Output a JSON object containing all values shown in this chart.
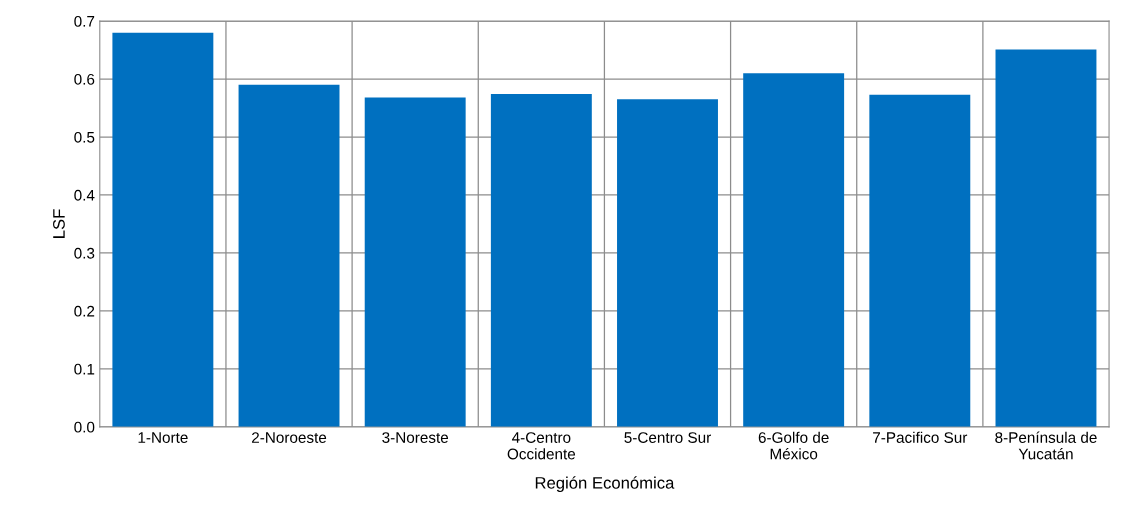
{
  "chart_data": {
    "type": "bar",
    "xlabel": "Región Económica",
    "ylabel": "LSF",
    "categories": [
      "1-Norte",
      "2-Noroeste",
      "3-Noreste",
      "4-Centro\nOccidente",
      "5-Centro Sur",
      "6-Golfo de\nMéxico",
      "7-Pacifico Sur",
      "8-Península de\nYucatán"
    ],
    "values": [
      0.68,
      0.59,
      0.568,
      0.574,
      0.565,
      0.61,
      0.573,
      0.651
    ],
    "color": "#0070c0",
    "ylim": [
      0,
      0.7
    ],
    "yticks": [
      {
        "value": 0,
        "label": "0.0"
      },
      0.1,
      0.2,
      0.3,
      0.4,
      0.5,
      0.6,
      0.7
    ],
    "grid": true
  }
}
